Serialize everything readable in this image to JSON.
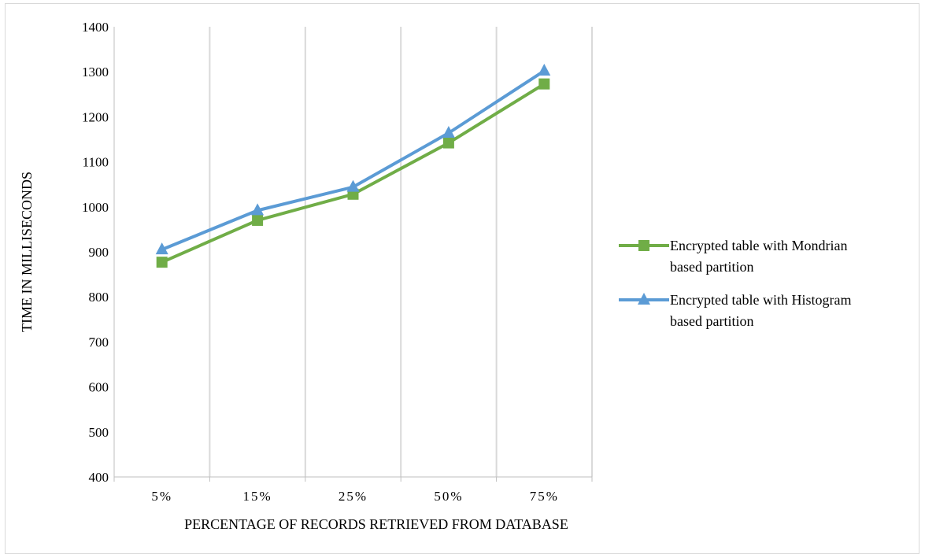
{
  "chart_data": {
    "type": "line",
    "title": "",
    "xlabel": "PERCENTAGE OF RECORDS RETRIEVED FROM DATABASE",
    "ylabel": "TIME IN MILLISECONDS",
    "categories": [
      "5%",
      "15%",
      "25%",
      "50%",
      "75%"
    ],
    "ylim": [
      400,
      1400
    ],
    "yticks": [
      400,
      500,
      600,
      700,
      800,
      900,
      1000,
      1100,
      1200,
      1300,
      1400
    ],
    "grid": "vertical",
    "legend_position": "right",
    "series": [
      {
        "name_line1": "Encrypted table with Mondrian",
        "name_line2": "based partition",
        "values": [
          877,
          970,
          1028,
          1142,
          1273
        ],
        "color": "#70ad47",
        "marker": "square"
      },
      {
        "name_line1": "Encrypted table with Histogram",
        "name_line2": "based partition",
        "values": [
          905,
          992,
          1044,
          1164,
          1302
        ],
        "color": "#5b9bd5",
        "marker": "triangle"
      }
    ]
  }
}
